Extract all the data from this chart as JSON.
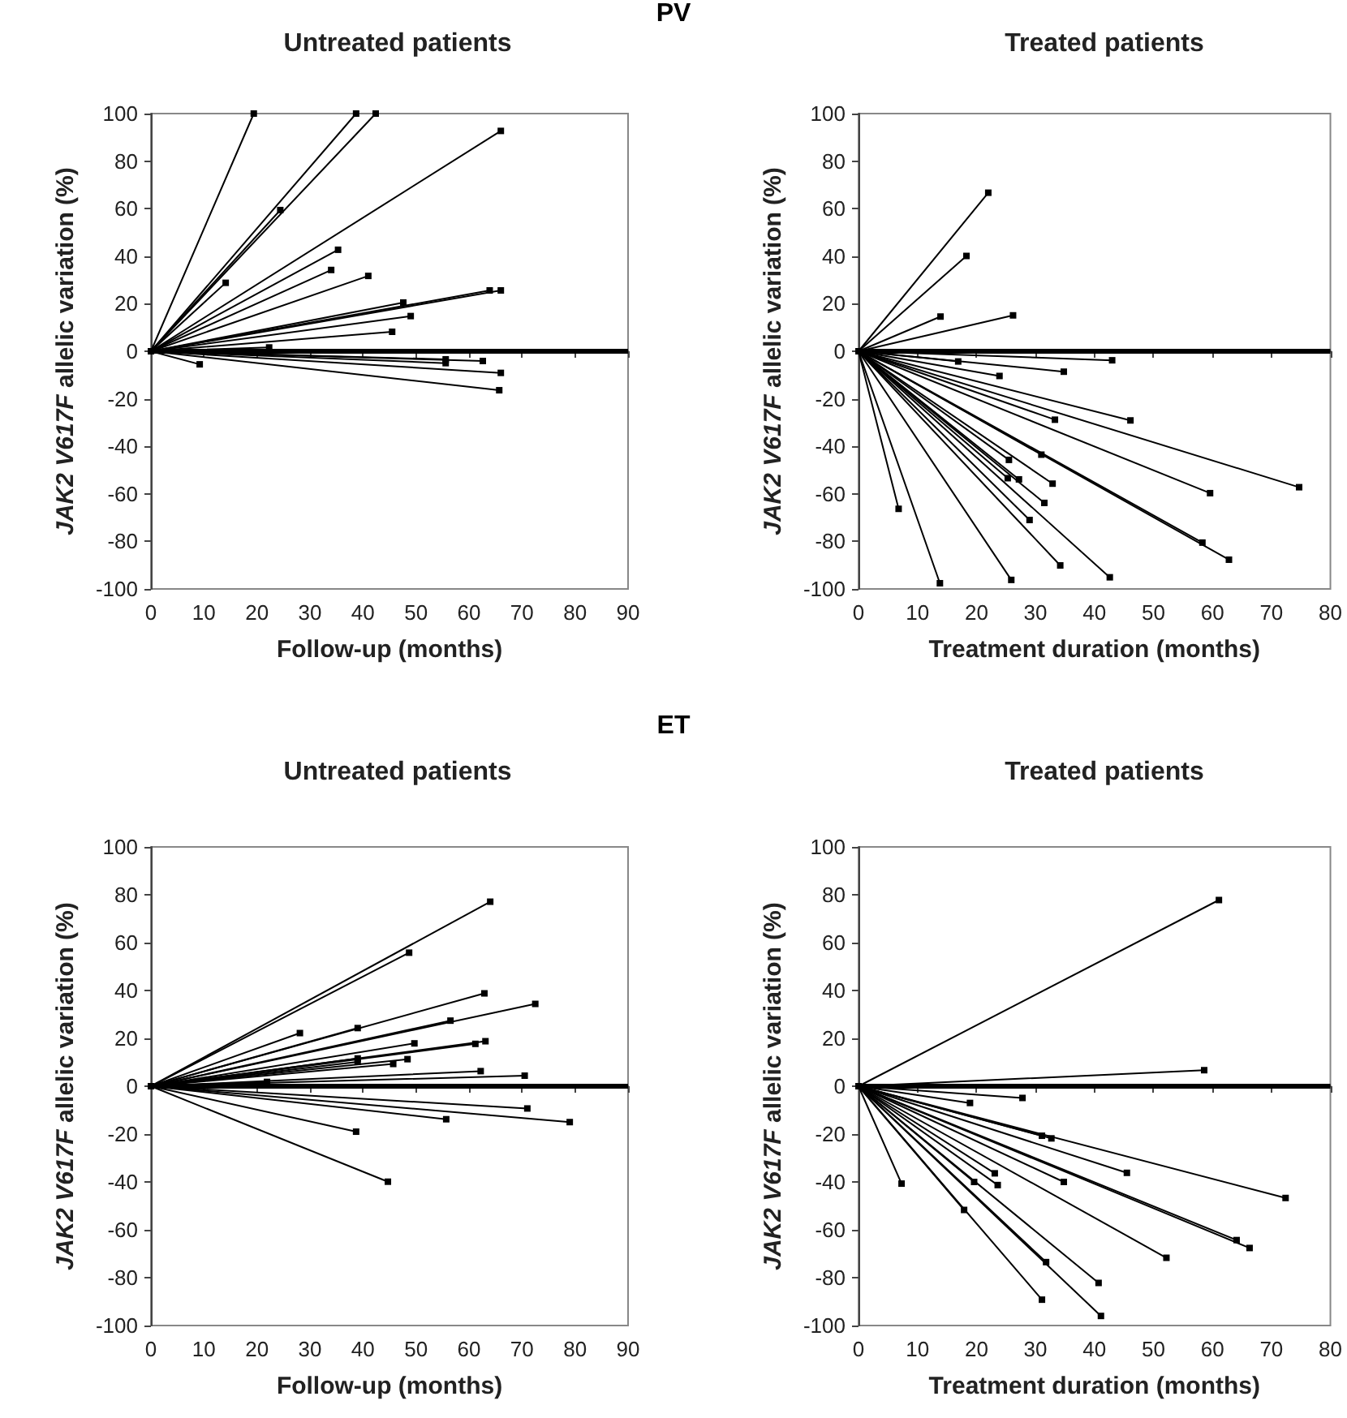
{
  "chart_data": [
    {
      "type": "line",
      "title": "Untreated patients",
      "annotations": [
        "PV"
      ],
      "xlabel": "Follow-up (months)",
      "ylabel": "JAK2 V617F allelic variation (%)",
      "xlim": [
        0,
        90
      ],
      "xticks": [
        0,
        10,
        20,
        30,
        40,
        50,
        60,
        70,
        80,
        90
      ],
      "ylim": [
        -100,
        100
      ],
      "yticks": [
        -100,
        -80,
        -60,
        -40,
        -20,
        0,
        20,
        40,
        60,
        80,
        100
      ],
      "grid": false,
      "marker": "square",
      "line_style": "solid",
      "ref_lines": [
        {
          "axis": "y",
          "value": 0,
          "color": "#000000"
        }
      ],
      "series": [
        {
          "color": "#000000",
          "x": [
            0,
            19.4
          ],
          "values": [
            0,
            100
          ]
        },
        {
          "color": "#000000",
          "x": [
            0,
            38.7
          ],
          "values": [
            0,
            100
          ]
        },
        {
          "color": "#000000",
          "x": [
            0,
            42.4
          ],
          "values": [
            0,
            100
          ]
        },
        {
          "color": "#000000",
          "x": [
            0,
            66
          ],
          "values": [
            0,
            92.7
          ]
        },
        {
          "color": "#000000",
          "x": [
            0,
            24.4
          ],
          "values": [
            0,
            59.4
          ]
        },
        {
          "color": "#000000",
          "x": [
            0,
            14.1
          ],
          "values": [
            0,
            28.8
          ]
        },
        {
          "color": "#000000",
          "x": [
            0,
            35.3
          ],
          "values": [
            0,
            42.7
          ]
        },
        {
          "color": "#000000",
          "x": [
            0,
            34
          ],
          "values": [
            0,
            34.2
          ]
        },
        {
          "color": "#000000",
          "x": [
            0,
            41
          ],
          "values": [
            0,
            31.7
          ]
        },
        {
          "color": "#000000",
          "x": [
            0,
            63.9
          ],
          "values": [
            0,
            25.6
          ]
        },
        {
          "color": "#000000",
          "x": [
            0,
            66
          ],
          "values": [
            0,
            25.6
          ]
        },
        {
          "color": "#000000",
          "x": [
            0,
            47.6
          ],
          "values": [
            0,
            20.5
          ]
        },
        {
          "color": "#000000",
          "x": [
            0,
            49
          ],
          "values": [
            0,
            14.8
          ]
        },
        {
          "color": "#000000",
          "x": [
            0,
            45.5
          ],
          "values": [
            0,
            8.2
          ]
        },
        {
          "color": "#000000",
          "x": [
            0,
            22.3
          ],
          "values": [
            0,
            1.6
          ]
        },
        {
          "color": "#000000",
          "x": [
            0,
            9.2
          ],
          "values": [
            0,
            -5.5
          ]
        },
        {
          "color": "#000000",
          "x": [
            0,
            55.6
          ],
          "values": [
            0,
            -3.4
          ]
        },
        {
          "color": "#000000",
          "x": [
            0,
            55.6
          ],
          "values": [
            0,
            -5
          ]
        },
        {
          "color": "#000000",
          "x": [
            0,
            62.6
          ],
          "values": [
            0,
            -4.1
          ]
        },
        {
          "color": "#000000",
          "x": [
            0,
            66
          ],
          "values": [
            0,
            -9.1
          ]
        },
        {
          "color": "#000000",
          "x": [
            0,
            65.7
          ],
          "values": [
            0,
            -16.4
          ]
        }
      ]
    },
    {
      "type": "line",
      "title": "Treated patients",
      "xlabel": "Treatment duration (months)",
      "ylabel": "JAK2 V617F allelic variation (%)",
      "xlim": [
        0,
        80
      ],
      "xticks": [
        0,
        10,
        20,
        30,
        40,
        50,
        60,
        70,
        80
      ],
      "ylim": [
        -100,
        100
      ],
      "yticks": [
        -100,
        -80,
        -60,
        -40,
        -20,
        0,
        20,
        40,
        60,
        80,
        100
      ],
      "grid": false,
      "marker": "square",
      "line_style": "solid",
      "ref_lines": [
        {
          "axis": "y",
          "value": 0,
          "color": "#000000"
        }
      ],
      "series": [
        {
          "color": "#000000",
          "x": [
            0,
            22
          ],
          "values": [
            0,
            66.7
          ]
        },
        {
          "color": "#000000",
          "x": [
            0,
            18.3
          ],
          "values": [
            0,
            40.1
          ]
        },
        {
          "color": "#000000",
          "x": [
            0,
            13.9
          ],
          "values": [
            0,
            14.6
          ]
        },
        {
          "color": "#000000",
          "x": [
            0,
            26.2
          ],
          "values": [
            0,
            15.1
          ]
        },
        {
          "color": "#000000",
          "x": [
            0,
            16.9
          ],
          "values": [
            0,
            -4.3
          ]
        },
        {
          "color": "#000000",
          "x": [
            0,
            43
          ],
          "values": [
            0,
            -3.8
          ]
        },
        {
          "color": "#000000",
          "x": [
            0,
            23.9
          ],
          "values": [
            0,
            -10.4
          ]
        },
        {
          "color": "#000000",
          "x": [
            0,
            34.8
          ],
          "values": [
            0,
            -8.6
          ]
        },
        {
          "color": "#000000",
          "x": [
            0,
            33.3
          ],
          "values": [
            0,
            -28.8
          ]
        },
        {
          "color": "#000000",
          "x": [
            0,
            46.1
          ],
          "values": [
            0,
            -29.1
          ]
        },
        {
          "color": "#000000",
          "x": [
            0,
            25.5
          ],
          "values": [
            0,
            -45.7
          ]
        },
        {
          "color": "#000000",
          "x": [
            0,
            31
          ],
          "values": [
            0,
            -43.5
          ]
        },
        {
          "color": "#000000",
          "x": [
            0,
            25.3
          ],
          "values": [
            0,
            -53.4
          ]
        },
        {
          "color": "#000000",
          "x": [
            0,
            27.2
          ],
          "values": [
            0,
            -53.9
          ]
        },
        {
          "color": "#000000",
          "x": [
            0,
            32.9
          ],
          "values": [
            0,
            -55.7
          ]
        },
        {
          "color": "#000000",
          "x": [
            0,
            31.5
          ],
          "values": [
            0,
            -63.8
          ]
        },
        {
          "color": "#000000",
          "x": [
            0,
            29
          ],
          "values": [
            0,
            -71
          ]
        },
        {
          "color": "#000000",
          "x": [
            0,
            59.6
          ],
          "values": [
            0,
            -59.7
          ]
        },
        {
          "color": "#000000",
          "x": [
            0,
            74.7
          ],
          "values": [
            0,
            -57.2
          ]
        },
        {
          "color": "#000000",
          "x": [
            0,
            58.3
          ],
          "values": [
            0,
            -80.5
          ]
        },
        {
          "color": "#000000",
          "x": [
            0,
            62.8
          ],
          "values": [
            0,
            -87.7
          ]
        },
        {
          "color": "#000000",
          "x": [
            0,
            34.2
          ],
          "values": [
            0,
            -90.1
          ]
        },
        {
          "color": "#000000",
          "x": [
            0,
            42.6
          ],
          "values": [
            0,
            -95.1
          ]
        },
        {
          "color": "#000000",
          "x": [
            0,
            25.9
          ],
          "values": [
            0,
            -96.2
          ]
        },
        {
          "color": "#000000",
          "x": [
            0,
            13.8
          ],
          "values": [
            0,
            -97.6
          ]
        },
        {
          "color": "#000000",
          "x": [
            0,
            6.8
          ],
          "values": [
            0,
            -66.3
          ]
        }
      ]
    },
    {
      "type": "line",
      "title": "Untreated patients",
      "annotations": [
        "ET"
      ],
      "xlabel": "Follow-up (months)",
      "ylabel": "JAK2 V617F allelic variation (%)",
      "xlim": [
        0,
        90
      ],
      "xticks": [
        0,
        10,
        20,
        30,
        40,
        50,
        60,
        70,
        80,
        90
      ],
      "ylim": [
        -100,
        100
      ],
      "yticks": [
        -100,
        -80,
        -60,
        -40,
        -20,
        0,
        20,
        40,
        60,
        80,
        100
      ],
      "grid": false,
      "marker": "square",
      "line_style": "solid",
      "ref_lines": [
        {
          "axis": "y",
          "value": 0,
          "color": "#000000"
        }
      ],
      "series": [
        {
          "color": "#000000",
          "x": [
            0,
            64
          ],
          "values": [
            0,
            77.1
          ]
        },
        {
          "color": "#000000",
          "x": [
            0,
            48.7
          ],
          "values": [
            0,
            55.8
          ]
        },
        {
          "color": "#000000",
          "x": [
            0,
            62.9
          ],
          "values": [
            0,
            38.8
          ]
        },
        {
          "color": "#000000",
          "x": [
            0,
            72.5
          ],
          "values": [
            0,
            34.4
          ]
        },
        {
          "color": "#000000",
          "x": [
            0,
            28.1
          ],
          "values": [
            0,
            22.2
          ]
        },
        {
          "color": "#000000",
          "x": [
            0,
            39
          ],
          "values": [
            0,
            24.3
          ]
        },
        {
          "color": "#000000",
          "x": [
            0,
            56.5
          ],
          "values": [
            0,
            27.4
          ]
        },
        {
          "color": "#000000",
          "x": [
            0,
            49.7
          ],
          "values": [
            0,
            17.9
          ]
        },
        {
          "color": "#000000",
          "x": [
            0,
            61.2
          ],
          "values": [
            0,
            17.7
          ]
        },
        {
          "color": "#000000",
          "x": [
            0,
            63.1
          ],
          "values": [
            0,
            18.8
          ]
        },
        {
          "color": "#000000",
          "x": [
            0,
            39
          ],
          "values": [
            0,
            11.6
          ]
        },
        {
          "color": "#000000",
          "x": [
            0,
            39
          ],
          "values": [
            0,
            10.2
          ]
        },
        {
          "color": "#000000",
          "x": [
            0,
            45.7
          ],
          "values": [
            0,
            9.3
          ]
        },
        {
          "color": "#000000",
          "x": [
            0,
            48.4
          ],
          "values": [
            0,
            11.3
          ]
        },
        {
          "color": "#000000",
          "x": [
            0,
            62.2
          ],
          "values": [
            0,
            6.3
          ]
        },
        {
          "color": "#000000",
          "x": [
            0,
            70.5
          ],
          "values": [
            0,
            4.4
          ]
        },
        {
          "color": "#000000",
          "x": [
            0,
            21.9
          ],
          "values": [
            0,
            1.8
          ]
        },
        {
          "color": "#000000",
          "x": [
            0,
            71
          ],
          "values": [
            0,
            -9.3
          ]
        },
        {
          "color": "#000000",
          "x": [
            0,
            79
          ],
          "values": [
            0,
            -15
          ]
        },
        {
          "color": "#000000",
          "x": [
            0,
            55.7
          ],
          "values": [
            0,
            -13.8
          ]
        },
        {
          "color": "#000000",
          "x": [
            0,
            38.7
          ],
          "values": [
            0,
            -19
          ]
        },
        {
          "color": "#000000",
          "x": [
            0,
            44.7
          ],
          "values": [
            0,
            -39.9
          ]
        }
      ]
    },
    {
      "type": "line",
      "title": "Treated patients",
      "xlabel": "Treatment duration (months)",
      "ylabel": "JAK2 V617F allelic variation (%)",
      "xlim": [
        0,
        80
      ],
      "xticks": [
        0,
        10,
        20,
        30,
        40,
        50,
        60,
        70,
        80
      ],
      "ylim": [
        -100,
        100
      ],
      "yticks": [
        -100,
        -80,
        -60,
        -40,
        -20,
        0,
        20,
        40,
        60,
        80,
        100
      ],
      "grid": false,
      "marker": "square",
      "line_style": "solid",
      "ref_lines": [
        {
          "axis": "y",
          "value": 0,
          "color": "#000000"
        }
      ],
      "series": [
        {
          "color": "#000000",
          "x": [
            0,
            61.1
          ],
          "values": [
            0,
            77.8
          ]
        },
        {
          "color": "#000000",
          "x": [
            0,
            58.6
          ],
          "values": [
            0,
            6.7
          ]
        },
        {
          "color": "#000000",
          "x": [
            0,
            18.9
          ],
          "values": [
            0,
            -7
          ]
        },
        {
          "color": "#000000",
          "x": [
            0,
            27.8
          ],
          "values": [
            0,
            -4.9
          ]
        },
        {
          "color": "#000000",
          "x": [
            0,
            31.1
          ],
          "values": [
            0,
            -20.7
          ]
        },
        {
          "color": "#000000",
          "x": [
            0,
            32.7
          ],
          "values": [
            0,
            -21.8
          ]
        },
        {
          "color": "#000000",
          "x": [
            0,
            45.5
          ],
          "values": [
            0,
            -36.2
          ]
        },
        {
          "color": "#000000",
          "x": [
            0,
            72.4
          ],
          "values": [
            0,
            -46.7
          ]
        },
        {
          "color": "#000000",
          "x": [
            0,
            7.3
          ],
          "values": [
            0,
            -40.7
          ]
        },
        {
          "color": "#000000",
          "x": [
            0,
            23.1
          ],
          "values": [
            0,
            -36.4
          ]
        },
        {
          "color": "#000000",
          "x": [
            0,
            19.6
          ],
          "values": [
            0,
            -40
          ]
        },
        {
          "color": "#000000",
          "x": [
            0,
            23.6
          ],
          "values": [
            0,
            -41.3
          ]
        },
        {
          "color": "#000000",
          "x": [
            0,
            34.8
          ],
          "values": [
            0,
            -40
          ]
        },
        {
          "color": "#000000",
          "x": [
            0,
            17.9
          ],
          "values": [
            0,
            -51.7
          ]
        },
        {
          "color": "#000000",
          "x": [
            0,
            52.2
          ],
          "values": [
            0,
            -71.7
          ]
        },
        {
          "color": "#000000",
          "x": [
            0,
            64.1
          ],
          "values": [
            0,
            -64.3
          ]
        },
        {
          "color": "#000000",
          "x": [
            0,
            66.3
          ],
          "values": [
            0,
            -67.6
          ]
        },
        {
          "color": "#000000",
          "x": [
            0,
            31.8
          ],
          "values": [
            0,
            -73.5
          ]
        },
        {
          "color": "#000000",
          "x": [
            0,
            40.7
          ],
          "values": [
            0,
            -82.2
          ]
        },
        {
          "color": "#000000",
          "x": [
            0,
            31.1
          ],
          "values": [
            0,
            -89.2
          ]
        },
        {
          "color": "#000000",
          "x": [
            0,
            41.1
          ],
          "values": [
            0,
            -96
          ]
        }
      ]
    }
  ]
}
